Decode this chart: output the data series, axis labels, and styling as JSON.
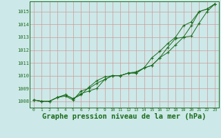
{
  "background_color": "#cce8e8",
  "grid_color": "#cc9999",
  "line_color": "#1a6b1a",
  "xlabel": "Graphe pression niveau de la mer (hPa)",
  "xlabel_fontsize": 7.5,
  "xlabel_color": "#1a6b1a",
  "ylim": [
    1007.5,
    1015.8
  ],
  "xlim": [
    -0.5,
    23.5
  ],
  "yticks": [
    1008,
    1009,
    1010,
    1011,
    1012,
    1013,
    1014,
    1015
  ],
  "line1_x": [
    0,
    1,
    2,
    3,
    4,
    5,
    6,
    7,
    8,
    9,
    10,
    11,
    12,
    13,
    14,
    15,
    16,
    17,
    18,
    19,
    20,
    21,
    22,
    23
  ],
  "line1_y": [
    1008.1,
    1008.0,
    1008.0,
    1008.3,
    1008.4,
    1008.1,
    1008.8,
    1009.0,
    1009.4,
    1009.7,
    1010.0,
    1010.0,
    1010.2,
    1010.2,
    1010.6,
    1010.8,
    1011.4,
    1012.2,
    1012.9,
    1013.0,
    1013.9,
    1015.0,
    1015.2,
    1015.6
  ],
  "line2_x": [
    0,
    1,
    2,
    3,
    4,
    5,
    6,
    7,
    8,
    9,
    10,
    11,
    12,
    13,
    14,
    15,
    16,
    17,
    18,
    19,
    20,
    21,
    22,
    23
  ],
  "line2_y": [
    1008.1,
    1008.0,
    1008.0,
    1008.3,
    1008.5,
    1008.2,
    1008.5,
    1009.1,
    1009.6,
    1009.9,
    1010.0,
    1010.0,
    1010.2,
    1010.3,
    1010.6,
    1011.4,
    1011.9,
    1012.5,
    1013.0,
    1013.9,
    1014.2,
    1015.0,
    1015.2,
    1015.6
  ],
  "line3_x": [
    0,
    1,
    2,
    3,
    4,
    5,
    6,
    7,
    8,
    9,
    10,
    11,
    12,
    13,
    14,
    15,
    16,
    17,
    18,
    19,
    20,
    21,
    22,
    23
  ],
  "line3_y": [
    1008.1,
    1008.0,
    1008.0,
    1008.3,
    1008.5,
    1008.2,
    1008.6,
    1008.8,
    1009.0,
    1009.7,
    1010.0,
    1010.0,
    1010.2,
    1010.2,
    1010.6,
    1010.8,
    1011.4,
    1011.8,
    1012.4,
    1013.0,
    1013.1,
    1014.1,
    1015.0,
    1015.6
  ]
}
